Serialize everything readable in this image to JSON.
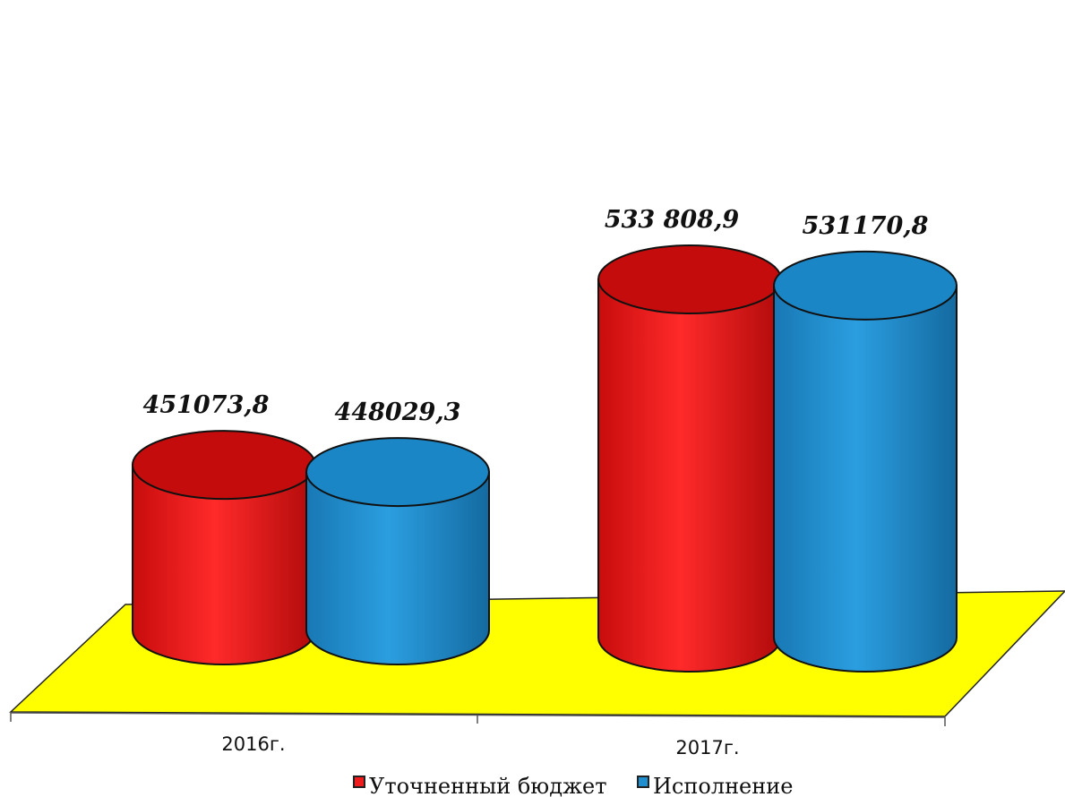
{
  "chart_data": {
    "type": "bar",
    "title": "",
    "xlabel": "",
    "ylabel": "",
    "categories": [
      "2016г.",
      "2017г."
    ],
    "series": [
      {
        "name": "Уточненный бюджет",
        "color": "#ee1c1c",
        "values": [
          451073.8,
          533808.9
        ],
        "labels": [
          "451073,8",
          "533 808,9"
        ]
      },
      {
        "name": "Исполнение",
        "color": "#1f8fd0",
        "values": [
          448029.3,
          531170.8
        ],
        "labels": [
          "448029,3",
          "531170,8"
        ]
      }
    ],
    "floor_color": "#ffff00",
    "legend_position": "bottom"
  }
}
